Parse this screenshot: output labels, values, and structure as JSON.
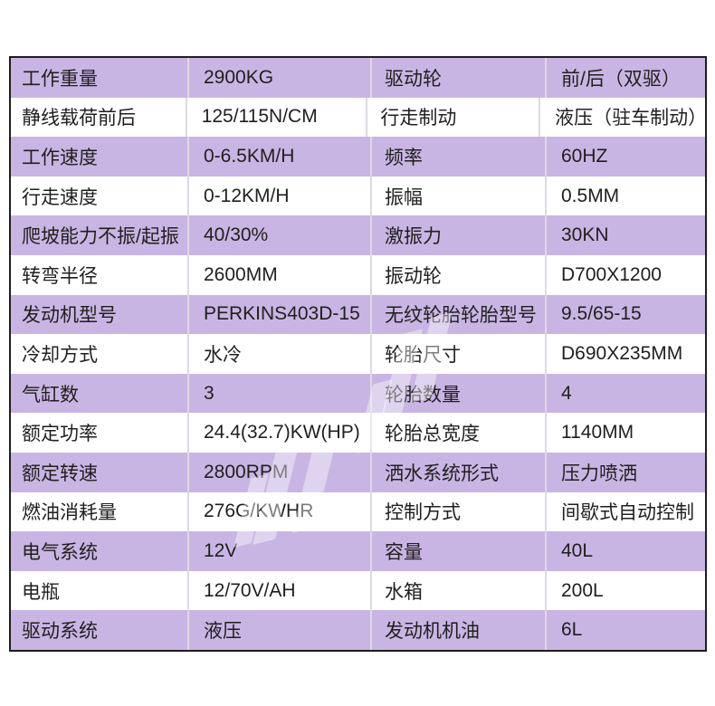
{
  "colors": {
    "row_purple": "#c9b5e3",
    "row_white": "#ffffff",
    "outer_border": "#1e1e1e",
    "column_divider": "#ddd9e4",
    "text": "#1f1f1f"
  },
  "table": {
    "rows": [
      [
        "工作重量",
        "2900KG",
        "驱动轮",
        "前/后（双驱）"
      ],
      [
        "静线载荷前后",
        "125/115N/CM",
        "行走制动",
        "液压（驻车制动）"
      ],
      [
        "工作速度",
        "0-6.5KM/H",
        "频率",
        "60HZ"
      ],
      [
        "行走速度",
        "0-12KM/H",
        "振幅",
        "0.5MM"
      ],
      [
        "爬坡能力不振/起振",
        "40/30%",
        "激振力",
        "30KN"
      ],
      [
        "转弯半径",
        "2600MM",
        "振动轮",
        "D700X1200"
      ],
      [
        "发动机型号",
        "PERKINS403D-15",
        "无纹轮胎轮胎型号",
        "9.5/65-15"
      ],
      [
        "冷却方式",
        "水冷",
        "轮胎尺寸",
        "D690X235MM"
      ],
      [
        "气缸数",
        "3",
        "轮胎数量",
        "4"
      ],
      [
        "额定功率",
        "24.4(32.7)KW(HP)",
        "轮胎总宽度",
        "1140MM"
      ],
      [
        "额定转速",
        "2800RPM",
        "洒水系统形式",
        "压力喷洒"
      ],
      [
        "燃油消耗量",
        "276G/KWHR",
        "控制方式",
        "间歇式自动控制"
      ],
      [
        "电气系统",
        "12V",
        "容量",
        "40L"
      ],
      [
        "电瓶",
        "12/70V/AH",
        "水箱",
        "200L"
      ],
      [
        "驱动系统",
        "液压",
        "发动机机油",
        "6L"
      ]
    ]
  }
}
